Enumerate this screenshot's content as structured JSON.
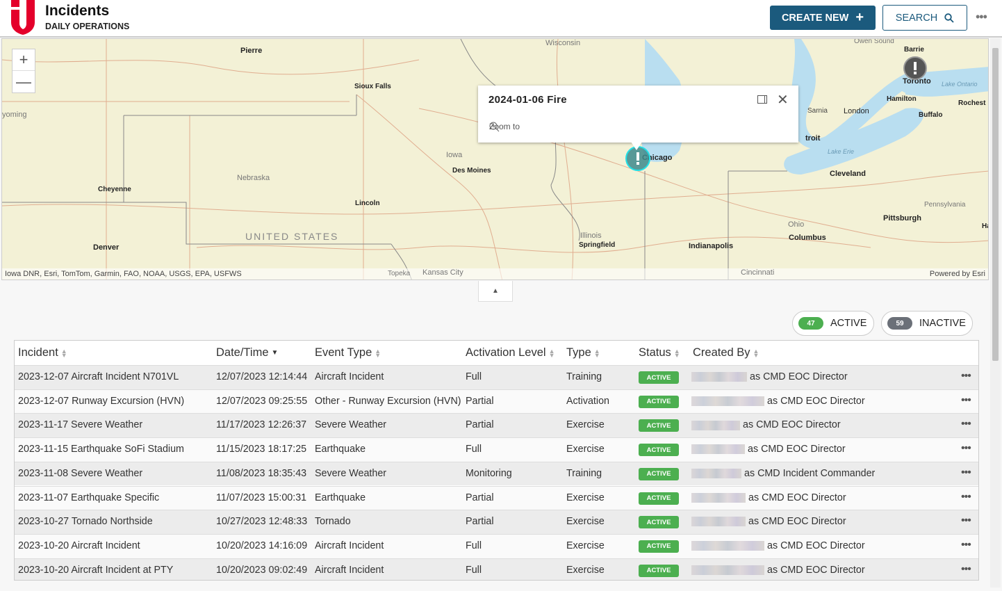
{
  "header": {
    "title": "Incidents",
    "subtitle": "DAILY OPERATIONS",
    "create_label": "CREATE NEW",
    "search_label": "SEARCH",
    "brand_color": "#e4002b",
    "accent": "#1b5a7d"
  },
  "map": {
    "zoom_in": "+",
    "zoom_out": "—",
    "labels": {
      "pierre": "Pierre",
      "wisconsin": "Wisconsin",
      "owen_sound": "Owen Sound",
      "barrie": "Barrie",
      "toronto": "Toronto",
      "lake_ontario": "Lake Ontario",
      "hamilton": "Hamilton",
      "rochester": "Rochest",
      "sioux_falls": "Sioux Falls",
      "wyoming": "yoming",
      "sarnia": "Sarnia",
      "london": "London",
      "buffalo": "Buffalo",
      "detroit": "troit",
      "iowa": "Iowa",
      "des_moines": "Des Moines",
      "chicago": "Chicago",
      "lake_erie": "Lake Erie",
      "cleveland": "Cleveland",
      "nebraska": "Nebraska",
      "cheyenne": "Cheyenne",
      "lincoln": "Lincoln",
      "pennsylvania": "Pennsylvania",
      "pittsburgh": "Pittsburgh",
      "ohio": "Ohio",
      "united_states": "UNITED STATES",
      "illinois": "Illinois",
      "springfield": "Springfield",
      "columbus": "Columbus",
      "denver": "Denver",
      "indianapolis": "Indianapolis",
      "harrisburg": "Ha",
      "topeka": "Topeka",
      "kansas_city": "Kansas City",
      "cincinnati": "Cincinnati"
    },
    "attribution": "Iowa DNR, Esri, TomTom, Garmin, FAO, NOAA, USGS, EPA, USFWS",
    "powered_by": "Powered by Esri",
    "popup": {
      "title": "2024-01-06 Fire",
      "zoom_to": "Zoom to"
    }
  },
  "filters": [
    {
      "count": "47",
      "label": "ACTIVE",
      "color": "#4caf50"
    },
    {
      "count": "59",
      "label": "INACTIVE",
      "color": "#6b7078"
    }
  ],
  "table": {
    "columns": [
      "Incident",
      "Date/Time",
      "Event Type",
      "Activation Level",
      "Type",
      "Status",
      "Created By"
    ],
    "rows": [
      {
        "incident": "2023-12-07 Aircraft Incident N701VL",
        "datetime": "12/07/2023 12:14:44",
        "event": "Aircraft Incident",
        "level": "Full",
        "type": "Training",
        "status": "ACTIVE",
        "created": "as CMD EOC Director"
      },
      {
        "incident": "2023-12-07 Runway Excursion (HVN)",
        "datetime": "12/07/2023 09:25:55",
        "event": "Other   - Runway Excursion (HVN)",
        "level": "Partial",
        "type": "Activation",
        "status": "ACTIVE",
        "created": "as CMD EOC Director"
      },
      {
        "incident": "2023-11-17 Severe Weather",
        "datetime": "11/17/2023 12:26:37",
        "event": "Severe Weather",
        "level": "Partial",
        "type": "Exercise",
        "status": "ACTIVE",
        "created": "as CMD EOC Director"
      },
      {
        "incident": "2023-11-15 Earthquake SoFi Stadium",
        "datetime": "11/15/2023 18:17:25",
        "event": "Earthquake",
        "level": "Full",
        "type": "Exercise",
        "status": "ACTIVE",
        "created": "as CMD EOC Director"
      },
      {
        "incident": "2023-11-08 Severe Weather",
        "datetime": "11/08/2023 18:35:43",
        "event": "Severe Weather",
        "level": "Monitoring",
        "type": "Training",
        "status": "ACTIVE",
        "created": "as CMD Incident Commander"
      },
      {
        "incident": "2023-11-07 Earthquake Specific",
        "datetime": "11/07/2023 15:00:31",
        "event": "Earthquake",
        "level": "Partial",
        "type": "Exercise",
        "status": "ACTIVE",
        "created": "as CMD EOC Director"
      },
      {
        "incident": "2023-10-27 Tornado Northside",
        "datetime": "10/27/2023 12:48:33",
        "event": "Tornado",
        "level": "Partial",
        "type": "Exercise",
        "status": "ACTIVE",
        "created": "as CMD EOC Director"
      },
      {
        "incident": "2023-10-20 Aircraft Incident",
        "datetime": "10/20/2023 14:16:09",
        "event": "Aircraft Incident",
        "level": "Full",
        "type": "Exercise",
        "status": "ACTIVE",
        "created": "as CMD EOC Director"
      },
      {
        "incident": "2023-10-20 Aircraft Incident at PTY",
        "datetime": "10/20/2023 09:02:49",
        "event": "Aircraft Incident",
        "level": "Full",
        "type": "Exercise",
        "status": "ACTIVE",
        "created": "as CMD EOC Director"
      }
    ]
  }
}
